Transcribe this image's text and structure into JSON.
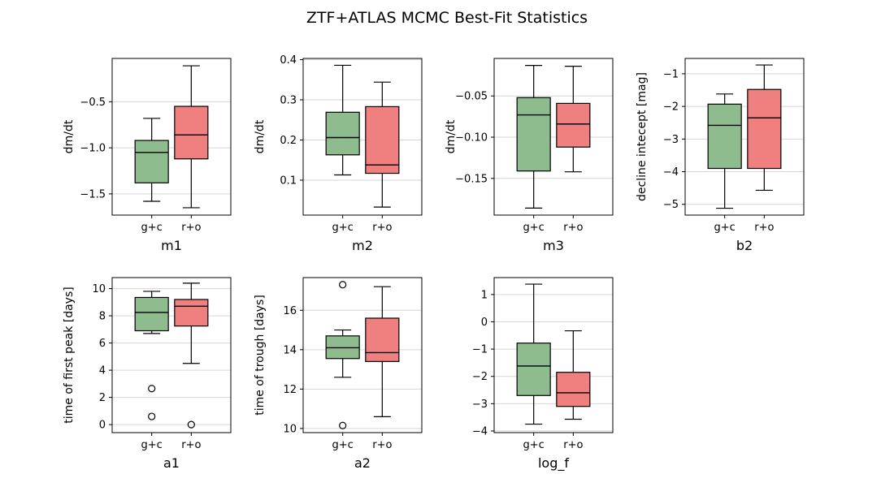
{
  "chart_data": {
    "type": "box",
    "title": "ZTF+ATLAS MCMC Best-Fit Statistics",
    "colors": {
      "g+c": "#8fbc8f",
      "r+o": "#f08080"
    },
    "panels": [
      {
        "xlabel": "m1",
        "ylabel": "dm/dt",
        "grid": true,
        "categories": [
          "g+c",
          "r+o"
        ],
        "ylim": [
          -1.73,
          -0.03
        ],
        "yticks": [
          -1.5,
          -1.0,
          -0.5
        ],
        "yticklabels": [
          "−1.5",
          "−1.0",
          "−0.5"
        ],
        "boxes": [
          {
            "name": "g+c",
            "whislo": -1.58,
            "q1": -1.38,
            "med": -1.05,
            "q3": -0.92,
            "whishi": -0.68,
            "fliers": []
          },
          {
            "name": "r+o",
            "whislo": -1.65,
            "q1": -1.12,
            "med": -0.86,
            "q3": -0.55,
            "whishi": -0.11,
            "fliers": []
          }
        ]
      },
      {
        "xlabel": "m2",
        "ylabel": "dm/dt",
        "grid": true,
        "categories": [
          "g+c",
          "r+o"
        ],
        "ylim": [
          0.013,
          0.403
        ],
        "yticks": [
          0.1,
          0.2,
          0.3,
          0.4
        ],
        "yticklabels": [
          "0.1",
          "0.2",
          "0.3",
          "0.4"
        ],
        "boxes": [
          {
            "name": "g+c",
            "whislo": 0.113,
            "q1": 0.163,
            "med": 0.206,
            "q3": 0.269,
            "whishi": 0.386,
            "fliers": []
          },
          {
            "name": "r+o",
            "whislo": 0.033,
            "q1": 0.117,
            "med": 0.138,
            "q3": 0.283,
            "whishi": 0.344,
            "fliers": []
          }
        ]
      },
      {
        "xlabel": "m3",
        "ylabel": "dm/dt",
        "grid": true,
        "categories": [
          "g+c",
          "r+o"
        ],
        "ylim": [
          -0.1945,
          -0.0045
        ],
        "yticks": [
          -0.15,
          -0.1,
          -0.05
        ],
        "yticklabels": [
          "−0.15",
          "−0.10",
          "−0.05"
        ],
        "boxes": [
          {
            "name": "g+c",
            "whislo": -0.186,
            "q1": -0.141,
            "med": -0.073,
            "q3": -0.052,
            "whishi": -0.013,
            "fliers": []
          },
          {
            "name": "r+o",
            "whislo": -0.142,
            "q1": -0.112,
            "med": -0.084,
            "q3": -0.059,
            "whishi": -0.014,
            "fliers": []
          }
        ]
      },
      {
        "xlabel": "b2",
        "ylabel": "decline intecept [mag]",
        "grid": true,
        "categories": [
          "g+c",
          "r+o"
        ],
        "ylim": [
          -5.33,
          -0.53
        ],
        "yticks": [
          -5,
          -4,
          -3,
          -2,
          -1
        ],
        "yticklabels": [
          "−5",
          "−4",
          "−3",
          "−2",
          "−1"
        ],
        "boxes": [
          {
            "name": "g+c",
            "whislo": -5.12,
            "q1": -3.9,
            "med": -2.58,
            "q3": -1.93,
            "whishi": -1.62,
            "fliers": []
          },
          {
            "name": "r+o",
            "whislo": -4.57,
            "q1": -3.9,
            "med": -2.35,
            "q3": -1.48,
            "whishi": -0.73,
            "fliers": []
          }
        ]
      },
      {
        "xlabel": "a1",
        "ylabel": "time of first peak [days]",
        "grid": true,
        "categories": [
          "g+c",
          "r+o"
        ],
        "ylim": [
          -0.59,
          10.81
        ],
        "yticks": [
          0,
          2,
          4,
          6,
          8,
          10
        ],
        "yticklabels": [
          "0",
          "2",
          "4",
          "6",
          "8",
          "10"
        ],
        "boxes": [
          {
            "name": "g+c",
            "whislo": 6.7,
            "q1": 6.9,
            "med": 8.25,
            "q3": 9.35,
            "whishi": 9.8,
            "fliers": [
              2.65,
              0.6
            ]
          },
          {
            "name": "r+o",
            "whislo": 4.5,
            "q1": 7.25,
            "med": 8.7,
            "q3": 9.2,
            "whishi": 10.4,
            "fliers": [
              0.0
            ]
          }
        ]
      },
      {
        "xlabel": "a2",
        "ylabel": "time of trough [days]",
        "grid": true,
        "categories": [
          "g+c",
          "r+o"
        ],
        "ylim": [
          9.79,
          17.66
        ],
        "yticks": [
          10,
          12,
          14,
          16
        ],
        "yticklabels": [
          "10",
          "12",
          "14",
          "16"
        ],
        "boxes": [
          {
            "name": "g+c",
            "whislo": 12.6,
            "q1": 13.55,
            "med": 14.1,
            "q3": 14.7,
            "whishi": 15.0,
            "fliers": [
              10.15,
              17.3
            ]
          },
          {
            "name": "r+o",
            "whislo": 10.6,
            "q1": 13.4,
            "med": 13.85,
            "q3": 15.6,
            "whishi": 17.2,
            "fliers": []
          }
        ]
      },
      {
        "xlabel": "log_f",
        "ylabel": "",
        "grid": true,
        "categories": [
          "g+c",
          "r+o"
        ],
        "ylim": [
          -4.06,
          1.62
        ],
        "yticks": [
          -4,
          -3,
          -2,
          -1,
          0,
          1
        ],
        "yticklabels": [
          "−4",
          "−3",
          "−2",
          "−1",
          "0",
          "1"
        ],
        "boxes": [
          {
            "name": "g+c",
            "whislo": -3.75,
            "q1": -2.7,
            "med": -1.62,
            "q3": -0.78,
            "whishi": 1.38,
            "fliers": []
          },
          {
            "name": "r+o",
            "whislo": -3.57,
            "q1": -3.1,
            "med": -2.6,
            "q3": -1.85,
            "whishi": -0.33,
            "fliers": []
          }
        ]
      }
    ]
  }
}
